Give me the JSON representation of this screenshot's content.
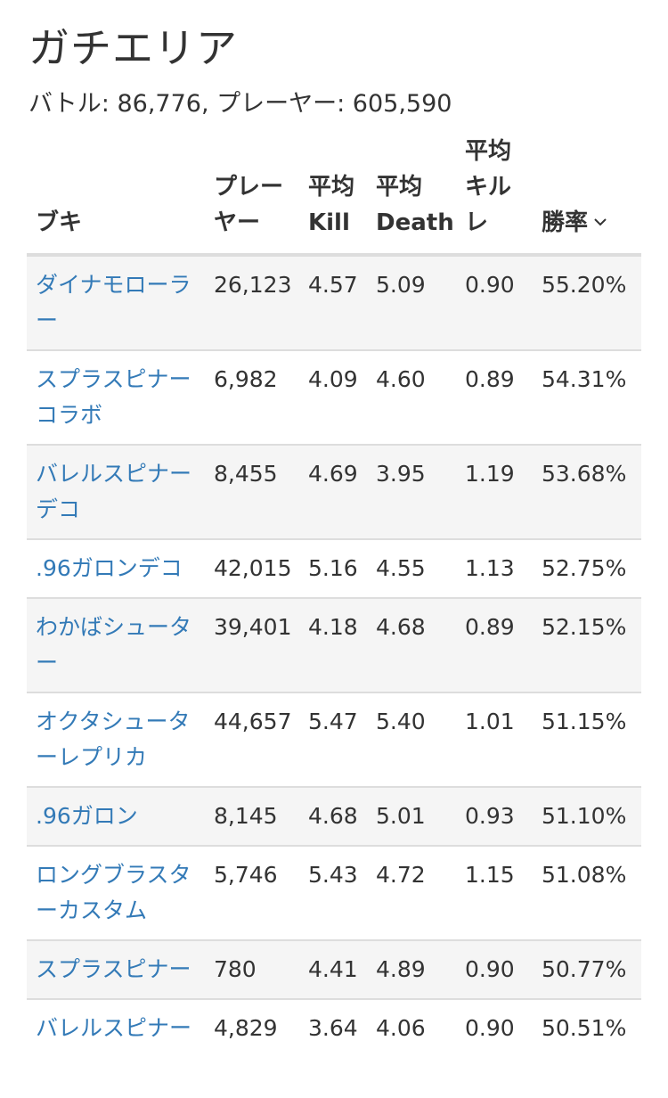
{
  "page": {
    "title": "ガチエリア",
    "summary": "バトル: 86,776, プレーヤー: 605,590"
  },
  "table": {
    "headers": {
      "weapon": "ブキ",
      "players_1": "プレー",
      "players_2": "ヤー",
      "kill_1": "平均",
      "kill_2": "Kill",
      "death_1": "平均",
      "death_2": "Death",
      "kr_1": "平均",
      "kr_2": "キル",
      "kr_3": "レ",
      "win": "勝率",
      "sort_icon": "chevron-down-icon"
    },
    "rows": [
      {
        "weapon": "ダイナモローラー",
        "players": "26,123",
        "kill": "4.57",
        "death": "5.09",
        "kr": "0.90",
        "win": "55.20%"
      },
      {
        "weapon": "スプラスピナーコラボ",
        "players": "6,982",
        "kill": "4.09",
        "death": "4.60",
        "kr": "0.89",
        "win": "54.31%"
      },
      {
        "weapon": "バレルスピナーデコ",
        "players": "8,455",
        "kill": "4.69",
        "death": "3.95",
        "kr": "1.19",
        "win": "53.68%"
      },
      {
        "weapon": ".96ガロンデコ",
        "players": "42,015",
        "kill": "5.16",
        "death": "4.55",
        "kr": "1.13",
        "win": "52.75%"
      },
      {
        "weapon": "わかばシューター",
        "players": "39,401",
        "kill": "4.18",
        "death": "4.68",
        "kr": "0.89",
        "win": "52.15%"
      },
      {
        "weapon": "オクタシューターレプリカ",
        "players": "44,657",
        "kill": "5.47",
        "death": "5.40",
        "kr": "1.01",
        "win": "51.15%"
      },
      {
        "weapon": ".96ガロン",
        "players": "8,145",
        "kill": "4.68",
        "death": "5.01",
        "kr": "0.93",
        "win": "51.10%"
      },
      {
        "weapon": "ロングブラスターカスタム",
        "players": "5,746",
        "kill": "5.43",
        "death": "4.72",
        "kr": "1.15",
        "win": "51.08%"
      },
      {
        "weapon": "スプラスピナー",
        "players": "780",
        "kill": "4.41",
        "death": "4.89",
        "kr": "0.90",
        "win": "50.77%"
      },
      {
        "weapon": "バレルスピナー",
        "players": "4,829",
        "kill": "3.64",
        "death": "4.06",
        "kr": "0.90",
        "win": "50.51%"
      }
    ]
  },
  "colors": {
    "link": "#337ab7",
    "text": "#333333",
    "stripe": "#f5f5f5",
    "border": "#dddddd"
  }
}
